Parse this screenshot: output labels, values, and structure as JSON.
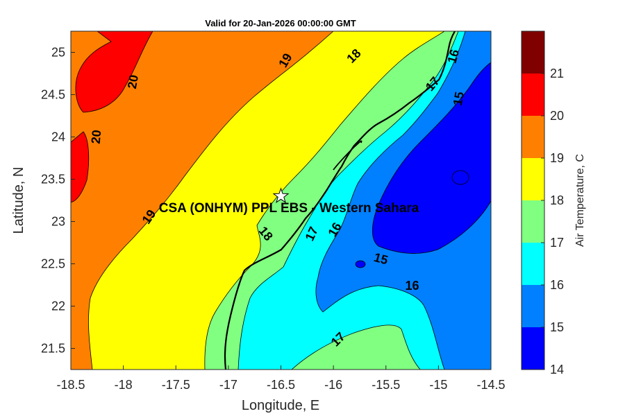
{
  "title": "Valid for 20-Jan-2026 00:00:00 GMT",
  "axes": {
    "xlabel": "Longitude, E",
    "ylabel": "Latitude, N",
    "xlim": [
      -18.5,
      -14.5
    ],
    "ylim": [
      21.25,
      25.25
    ],
    "xticks": [
      "-18.5",
      "-18",
      "-17.5",
      "-17",
      "-16.5",
      "-16",
      "-15.5",
      "-15",
      "-14.5"
    ],
    "yticks": [
      "21.5",
      "22",
      "22.5",
      "23",
      "23.5",
      "24",
      "24.5",
      "25"
    ]
  },
  "colorbar": {
    "label": "Air Temperature, C",
    "ticks": [
      "14",
      "15",
      "16",
      "17",
      "18",
      "19",
      "20",
      "21"
    ],
    "colors": [
      "#0000ff",
      "#0080ff",
      "#00ffff",
      "#80ff80",
      "#ffff00",
      "#ff8000",
      "#ff0000",
      "#800000"
    ]
  },
  "site": {
    "label": "CSA (ONHYM) PPL EBS  - Western Sahara",
    "lon": -16.5,
    "lat": 23.3
  },
  "contour_labels": [
    {
      "text": "20",
      "lon": -17.9,
      "lat": 24.65,
      "rot": -80
    },
    {
      "text": "20",
      "lon": -18.25,
      "lat": 24.0,
      "rot": -85
    },
    {
      "text": "19",
      "lon": -16.45,
      "lat": 24.9,
      "rot": -60
    },
    {
      "text": "19",
      "lon": -17.75,
      "lat": 23.05,
      "rot": -55
    },
    {
      "text": "18",
      "lon": -15.8,
      "lat": 24.95,
      "rot": -45
    },
    {
      "text": "18",
      "lon": -16.65,
      "lat": 22.85,
      "rot": 50
    },
    {
      "text": "17",
      "lon": -15.05,
      "lat": 24.62,
      "rot": -50
    },
    {
      "text": "17",
      "lon": -16.2,
      "lat": 22.85,
      "rot": -65
    },
    {
      "text": "17",
      "lon": -15.95,
      "lat": 21.6,
      "rot": -45
    },
    {
      "text": "16",
      "lon": -14.85,
      "lat": 24.95,
      "rot": -75
    },
    {
      "text": "16",
      "lon": -15.98,
      "lat": 22.9,
      "rot": -60
    },
    {
      "text": "16",
      "lon": -15.25,
      "lat": 22.23,
      "rot": 0
    },
    {
      "text": "15",
      "lon": -14.8,
      "lat": 24.45,
      "rot": -80
    },
    {
      "text": "15",
      "lon": -15.55,
      "lat": 22.55,
      "rot": 15
    }
  ]
}
